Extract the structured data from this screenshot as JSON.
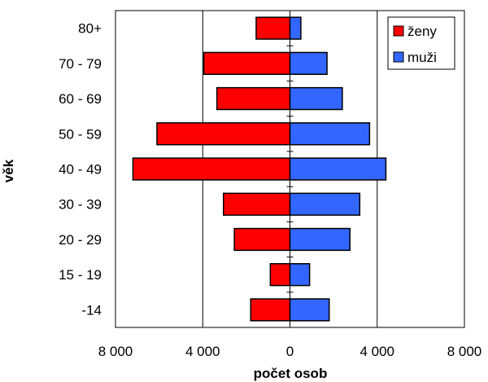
{
  "chart_data": {
    "type": "bar",
    "orientation": "horizontal",
    "layout": "population-pyramid",
    "categories": [
      "80+",
      "70 - 79",
      "60 - 69",
      "50 - 59",
      "40 - 49",
      "30 - 39",
      "20 - 29",
      "15 - 19",
      "-14"
    ],
    "series": [
      {
        "name": "ženy",
        "color": "#ff0000",
        "side": "left",
        "values": [
          1550,
          3950,
          3350,
          6100,
          7200,
          3050,
          2550,
          900,
          1800
        ]
      },
      {
        "name": "muži",
        "color": "#3366ff",
        "side": "right",
        "values": [
          500,
          1700,
          2400,
          3650,
          4400,
          3200,
          2750,
          900,
          1800
        ]
      }
    ],
    "xlabel": "počet osob",
    "ylabel": "věk",
    "xlim": [
      -8000,
      8000
    ],
    "xticks": [
      -8000,
      -4000,
      0,
      4000,
      8000
    ],
    "xtick_labels": [
      "8 000",
      "4 000",
      "0",
      "4 000",
      "8 000"
    ],
    "grid": "vertical",
    "legend": "top-right"
  }
}
